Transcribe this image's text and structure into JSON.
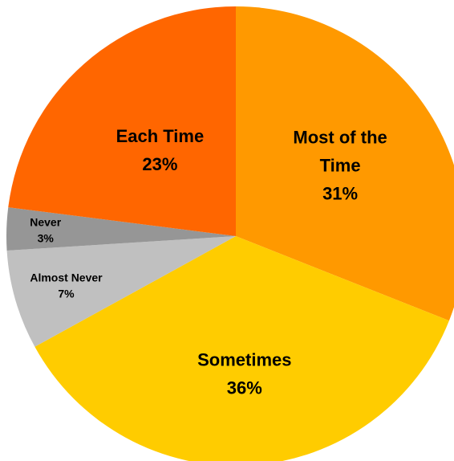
{
  "chart_data": {
    "type": "pie",
    "start_angle_deg": 0,
    "direction": "clockwise",
    "slices": [
      {
        "label_lines": [
          "Most of the",
          "Time"
        ],
        "value_label": "31%",
        "value": 31,
        "color": "#FF9900"
      },
      {
        "label_lines": [
          "Sometimes"
        ],
        "value_label": "36%",
        "value": 36,
        "color": "#FFCC00"
      },
      {
        "label_lines": [
          "Almost Never"
        ],
        "value_label": "7%",
        "value": 7,
        "color": "#C0C0C0"
      },
      {
        "label_lines": [
          "Never"
        ],
        "value_label": "3%",
        "value": 3,
        "color": "#969696"
      },
      {
        "label_lines": [
          "Each Time"
        ],
        "value_label": "23%",
        "value": 23,
        "color": "#FF6600"
      }
    ]
  }
}
